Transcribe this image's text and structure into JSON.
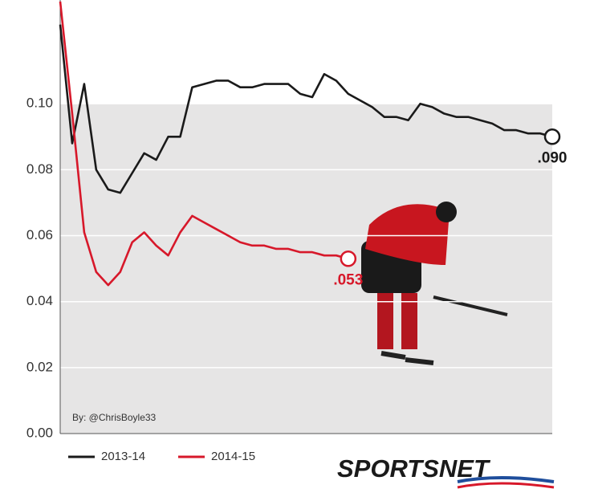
{
  "chart_data": {
    "type": "line",
    "source": "By: @ChrisBoyle33",
    "logo": "SPORTSNET",
    "ylim": [
      0,
      0.13
    ],
    "yticks": [
      {
        "value": 0,
        "label": "0.00"
      },
      0.02,
      0.04,
      0.06,
      0.08,
      {
        "value": 0.1,
        "label": "0.10"
      }
    ],
    "grid": true,
    "series": [
      {
        "name": "2013-14",
        "color": "#1a1a1a",
        "end_label": ".090",
        "values": [
          0.124,
          0.088,
          0.106,
          0.08,
          0.074,
          0.073,
          0.079,
          0.085,
          0.083,
          0.09,
          0.09,
          0.105,
          0.106,
          0.107,
          0.107,
          0.105,
          0.105,
          0.106,
          0.106,
          0.106,
          0.103,
          0.102,
          0.109,
          0.107,
          0.103,
          0.101,
          0.099,
          0.096,
          0.096,
          0.095,
          0.1,
          0.099,
          0.097,
          0.096,
          0.096,
          0.095,
          0.094,
          0.092,
          0.092,
          0.091,
          0.091,
          0.09
        ]
      },
      {
        "name": "2014-15",
        "color": "#d7182a",
        "end_label": ".053",
        "values": [
          0.131,
          0.097,
          0.061,
          0.049,
          0.045,
          0.049,
          0.058,
          0.061,
          0.057,
          0.054,
          0.061,
          0.066,
          0.064,
          0.062,
          0.06,
          0.058,
          0.057,
          0.057,
          0.056,
          0.056,
          0.055,
          0.055,
          0.054,
          0.054,
          0.053
        ]
      }
    ]
  }
}
